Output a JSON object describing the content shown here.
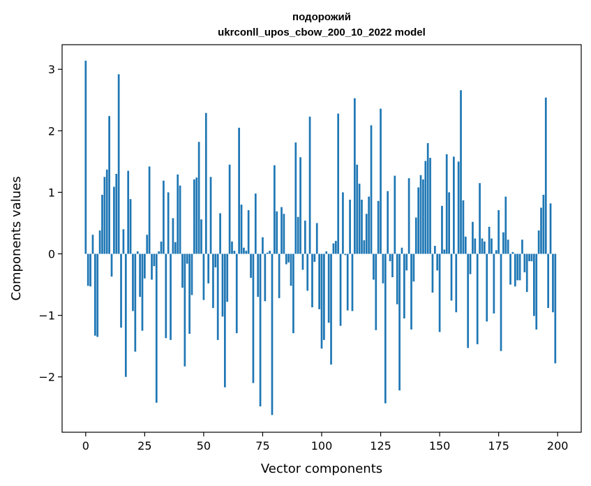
{
  "chart_data": {
    "type": "bar",
    "title_line1": "подорожий",
    "title_line2": "ukrconll_upos_cbow_200_10_2022 model",
    "xlabel": "Vector components",
    "ylabel": "Components values",
    "xlim": [
      -10,
      210
    ],
    "ylim": [
      -2.9,
      3.4
    ],
    "xticks": [
      0,
      25,
      50,
      75,
      100,
      125,
      150,
      175,
      200
    ],
    "yticks": [
      -2,
      -1,
      0,
      1,
      2,
      3
    ],
    "ytick_labels": [
      "−2",
      "−1",
      "0",
      "1",
      "2",
      "3"
    ],
    "bar_color": "#1f77b4",
    "values": [
      3.14,
      -0.52,
      -0.53,
      0.31,
      -1.33,
      -1.35,
      0.38,
      0.96,
      1.25,
      1.37,
      2.24,
      -0.37,
      1.09,
      1.3,
      2.92,
      -1.2,
      0.4,
      -2.0,
      1.35,
      0.89,
      -0.93,
      -1.59,
      0.04,
      -0.7,
      -1.25,
      -0.4,
      0.31,
      1.42,
      -0.42,
      -0.2,
      -2.42,
      0.04,
      0.2,
      1.19,
      -1.37,
      1.0,
      -1.4,
      0.58,
      0.19,
      1.29,
      1.11,
      -0.55,
      -1.83,
      -0.16,
      -1.3,
      -0.67,
      1.21,
      1.24,
      1.82,
      0.56,
      -0.75,
      2.29,
      -0.48,
      1.25,
      -0.88,
      -0.22,
      -1.4,
      0.66,
      -1.02,
      -2.17,
      -0.78,
      1.45,
      0.2,
      0.05,
      -1.29,
      2.05,
      0.8,
      0.1,
      0.05,
      0.71,
      -0.39,
      -2.1,
      0.98,
      -0.7,
      -2.48,
      0.27,
      -0.77,
      0.02,
      0.05,
      -2.62,
      1.44,
      0.69,
      -0.72,
      0.76,
      0.65,
      -0.17,
      -0.14,
      -0.52,
      -1.29,
      1.81,
      0.6,
      1.57,
      -0.26,
      0.54,
      -0.6,
      2.23,
      -0.87,
      -0.13,
      0.5,
      -0.9,
      -1.54,
      -1.4,
      0.04,
      -1.12,
      -1.8,
      0.17,
      0.21,
      2.28,
      -1.17,
      1.0,
      -0.02,
      -0.92,
      0.88,
      -0.93,
      2.53,
      1.45,
      1.14,
      0.88,
      0.22,
      0.65,
      0.93,
      2.09,
      -0.42,
      -1.24,
      0.86,
      2.36,
      -0.48,
      -2.43,
      1.02,
      -0.12,
      -0.38,
      1.27,
      -0.82,
      -2.22,
      0.1,
      -1.05,
      -0.27,
      1.23,
      -1.23,
      -0.45,
      0.59,
      1.08,
      1.28,
      1.21,
      1.51,
      1.8,
      1.56,
      -0.63,
      0.13,
      -0.27,
      -1.27,
      0.78,
      0.07,
      1.62,
      1.0,
      -0.76,
      1.58,
      -0.95,
      1.5,
      2.66,
      0.87,
      0.28,
      -1.53,
      -0.33,
      0.52,
      0.25,
      -1.47,
      1.15,
      0.25,
      0.2,
      -1.1,
      0.44,
      0.25,
      -0.97,
      0.06,
      0.71,
      -1.58,
      0.35,
      0.93,
      0.23,
      -0.5,
      0.03,
      -0.53,
      -0.43,
      -0.43,
      0.23,
      -0.3,
      -0.62,
      -0.12,
      -0.12,
      -1.01,
      -1.23,
      0.38,
      0.75,
      0.96,
      2.54,
      -0.88,
      0.82,
      -0.95,
      -1.78
    ]
  }
}
